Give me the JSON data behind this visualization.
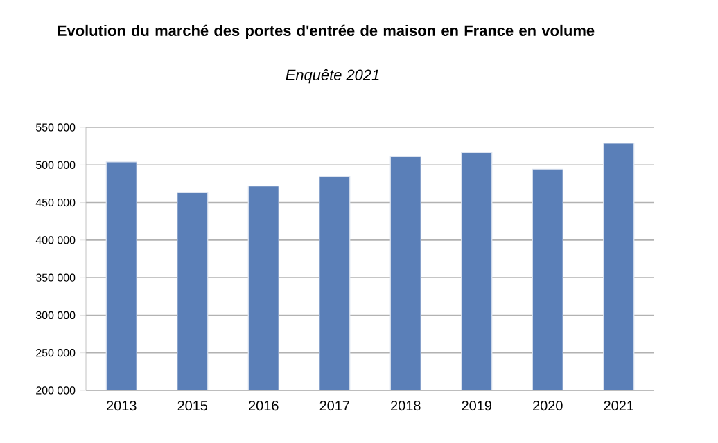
{
  "chart_data": {
    "type": "bar",
    "title": "Evolution du marché des portes d'entrée de maison en France en volume",
    "subtitle": "Enquête 2021",
    "categories": [
      "2013",
      "2015",
      "2016",
      "2017",
      "2018",
      "2019",
      "2020",
      "2021"
    ],
    "values": [
      504000,
      463000,
      472000,
      485000,
      511000,
      516500,
      494500,
      529000
    ],
    "color": "#5a7fb8",
    "ylim": [
      200000,
      550000
    ],
    "yticks": [
      {
        "value": 200000,
        "label": "200 000"
      },
      {
        "value": 250000,
        "label": "250 000"
      },
      {
        "value": 300000,
        "label": "300 000"
      },
      {
        "value": 350000,
        "label": "350 000"
      },
      {
        "value": 400000,
        "label": "400 000"
      },
      {
        "value": 450000,
        "label": "450 000"
      },
      {
        "value": 500000,
        "label": "500 000"
      },
      {
        "value": 550000,
        "label": "550 000"
      }
    ],
    "grid": "y"
  }
}
